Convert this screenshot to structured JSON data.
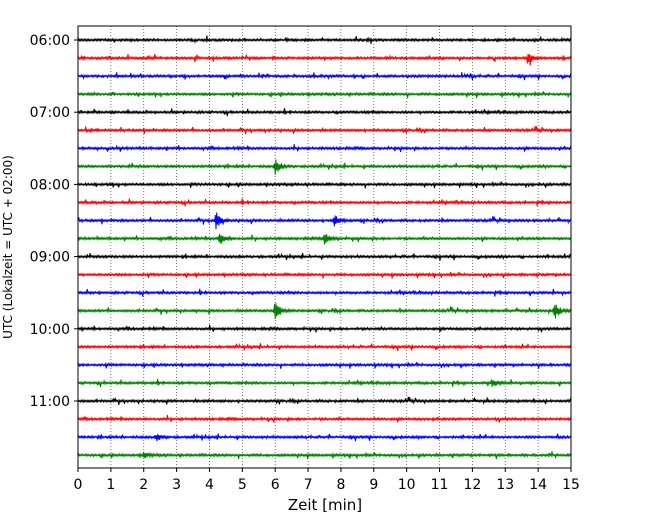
{
  "chart_data": {
    "type": "line",
    "title": "",
    "xlabel": "Zeit  [min]",
    "ylabel": "UTC (Lokalzeit = UTC + 02:00)",
    "xlim": [
      0,
      15
    ],
    "x_ticks": [
      "0",
      "1",
      "2",
      "3",
      "4",
      "5",
      "6",
      "7",
      "8",
      "9",
      "10",
      "11",
      "12",
      "13",
      "14",
      "15"
    ],
    "y_ticks": [
      "06:00",
      "07:00",
      "08:00",
      "09:00",
      "10:00",
      "11:00"
    ],
    "grid": "vertical dotted lines at each minute",
    "trace_interval_min": 15,
    "trace_start_times": [
      "06:00",
      "06:15",
      "06:30",
      "06:45",
      "07:00",
      "07:15",
      "07:30",
      "07:45",
      "08:00",
      "08:15",
      "08:30",
      "08:45",
      "09:00",
      "09:15",
      "09:30",
      "09:45",
      "10:00",
      "10:15",
      "10:30",
      "10:45",
      "11:00",
      "11:15",
      "11:30",
      "11:45"
    ],
    "color_cycle": [
      "#000000",
      "#ff0000",
      "#0000ff",
      "#008000"
    ],
    "events": [
      {
        "trace": 1,
        "minute": 13.7,
        "amp": 7
      },
      {
        "trace": 7,
        "minute": 6.0,
        "amp": 8
      },
      {
        "trace": 10,
        "minute": 4.2,
        "amp": 9
      },
      {
        "trace": 10,
        "minute": 7.8,
        "amp": 6
      },
      {
        "trace": 11,
        "minute": 4.3,
        "amp": 7
      },
      {
        "trace": 11,
        "minute": 7.5,
        "amp": 7
      },
      {
        "trace": 15,
        "minute": 6.0,
        "amp": 11
      },
      {
        "trace": 15,
        "minute": 14.5,
        "amp": 9
      },
      {
        "trace": 19,
        "minute": 12.6,
        "amp": 4
      },
      {
        "trace": 22,
        "minute": 2.4,
        "amp": 4
      },
      {
        "trace": 23,
        "minute": 2.0,
        "amp": 3
      }
    ]
  }
}
